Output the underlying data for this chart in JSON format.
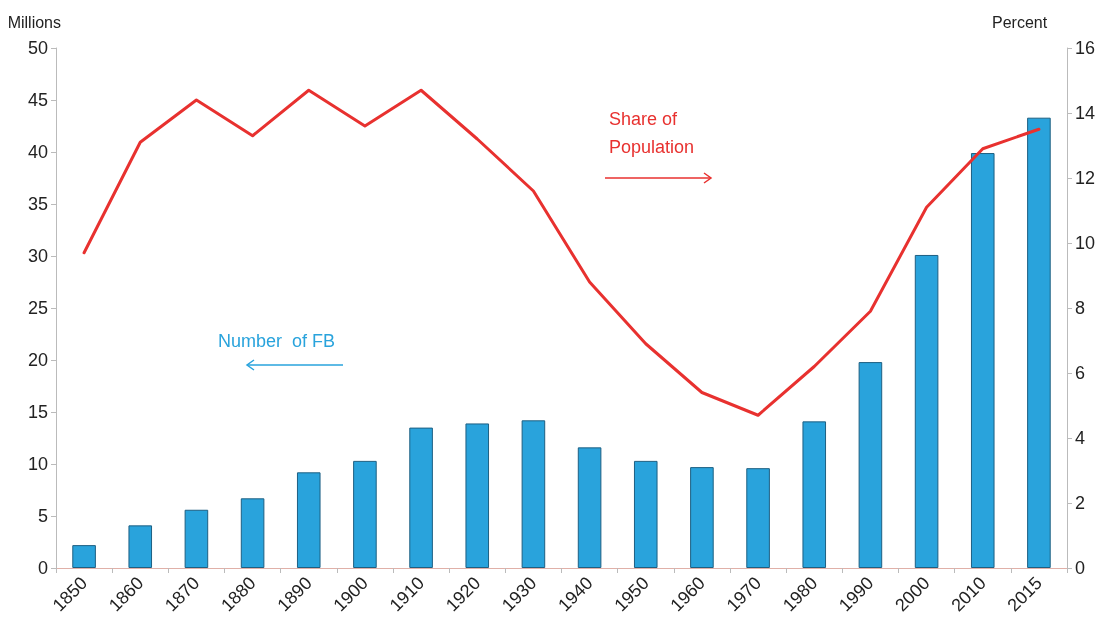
{
  "chart_data": {
    "type": "bar",
    "ylabel": "Millions",
    "y2label": "Percent",
    "categories": [
      "1850",
      "1860",
      "1870",
      "1880",
      "1890",
      "1900",
      "1910",
      "1920",
      "1930",
      "1940",
      "1950",
      "1960",
      "1970",
      "1980",
      "1990",
      "2000",
      "2010",
      "2015"
    ],
    "series": [
      {
        "color": "#29a3dc",
        "values": [
          2.2,
          4.1,
          5.6,
          6.7,
          9.2,
          10.3,
          13.5,
          13.9,
          14.2,
          11.6,
          10.3,
          9.7,
          9.6,
          14.1,
          19.8,
          30.1,
          39.9,
          43.3
        ]
      },
      {
        "type": "line",
        "axis": "y2",
        "color": "#e8312f",
        "values": [
          9.7,
          13.1,
          14.4,
          13.3,
          14.7,
          13.6,
          14.7,
          13.2,
          11.6,
          8.8,
          6.9,
          5.4,
          4.7,
          6.2,
          7.9,
          11.1,
          12.9,
          13.5
        ]
      }
    ],
    "ylim": [
      0,
      50
    ],
    "yticks": [
      0,
      5,
      10,
      15,
      20,
      25,
      30,
      35,
      40,
      45,
      50
    ],
    "y2lim": [
      0,
      16
    ],
    "y2ticks": [
      0,
      2,
      4,
      6,
      8,
      10,
      12,
      14,
      16
    ],
    "annotations": [
      "Number  of FB",
      "Share of\nPopulation"
    ],
    "grid": false,
    "marker": "none",
    "line_style": "solid"
  }
}
